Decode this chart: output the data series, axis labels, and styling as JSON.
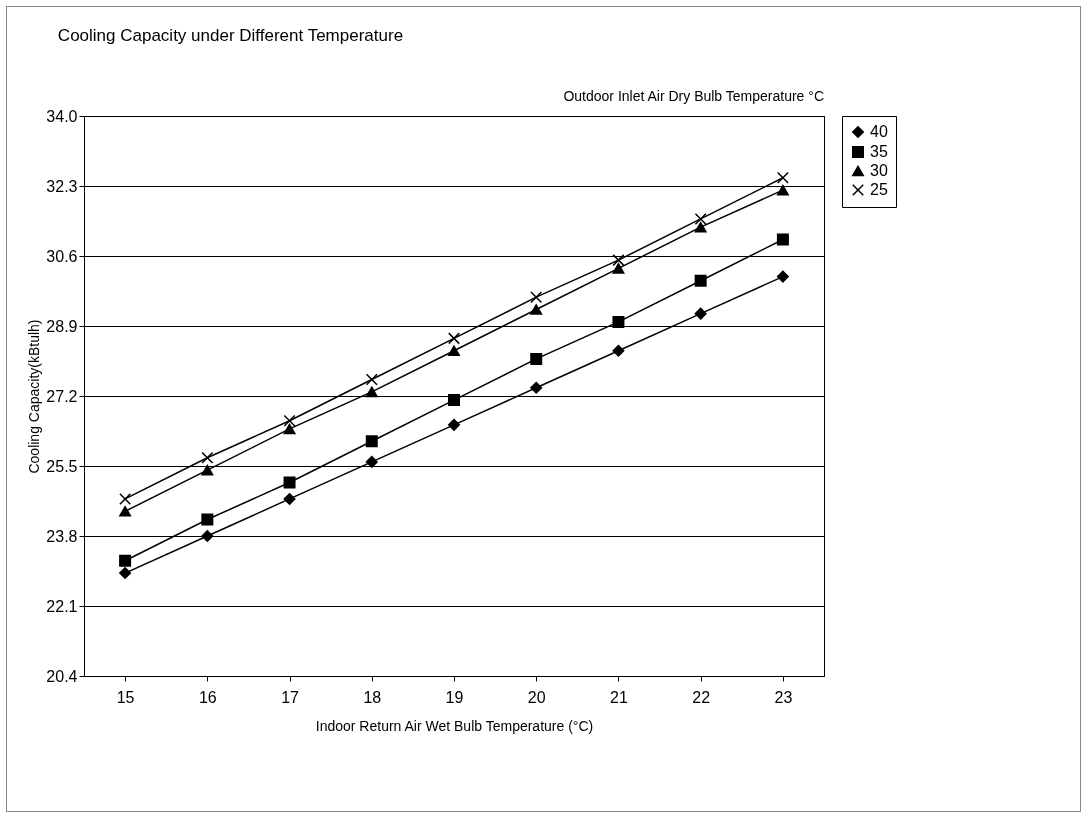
{
  "chart_data": {
    "type": "line",
    "title": "Cooling Capacity under Different Temperature",
    "xlabel": "Indoor Return Air Wet Bulb Temperature (°C)",
    "ylabel": "Cooling Capacity(kBtulh)",
    "legend_title": "Outdoor Inlet Air Dry Bulb Temperature °C",
    "categories": [
      "15",
      "16",
      "17",
      "18",
      "19",
      "20",
      "21",
      "22",
      "23"
    ],
    "series": [
      {
        "name": "40",
        "color": "#000000",
        "marker": "diamond",
        "values": [
          22.9,
          23.8,
          24.7,
          25.6,
          26.5,
          27.4,
          28.3,
          29.2,
          30.1
        ]
      },
      {
        "name": "35",
        "color": "#000000",
        "marker": "square",
        "values": [
          23.2,
          24.2,
          25.1,
          26.1,
          27.1,
          28.1,
          29.0,
          30.0,
          31.0
        ]
      },
      {
        "name": "30",
        "color": "#000000",
        "marker": "triangle",
        "values": [
          24.4,
          25.4,
          26.4,
          27.3,
          28.3,
          29.3,
          30.3,
          31.3,
          32.2
        ]
      },
      {
        "name": "25",
        "color": "#000000",
        "marker": "cross",
        "values": [
          24.7,
          25.7,
          26.6,
          27.6,
          28.6,
          29.6,
          30.5,
          31.5,
          32.5
        ]
      }
    ],
    "ylim": [
      20.4,
      34.0
    ],
    "yticks": [
      {
        "value": 20.4,
        "label": "20.4"
      },
      22.1,
      23.8,
      25.5,
      27.2,
      28.9,
      30.6,
      32.3,
      {
        "value": 34.0,
        "label": "34.0"
      }
    ],
    "grid": "y",
    "legend": "right",
    "line_style": "solid"
  }
}
